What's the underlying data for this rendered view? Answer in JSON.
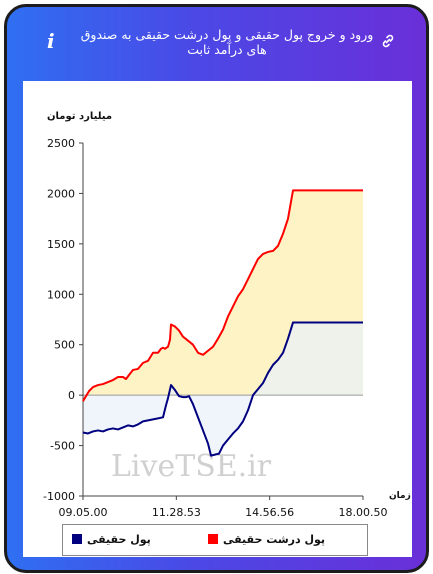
{
  "header": {
    "title": "ورود و خروج پول حقیقی و پول درشت حقیقی به صندوق های درآمد ثابت",
    "info_icon": "i"
  },
  "chart_data": {
    "type": "line",
    "title": "",
    "ylabel": "میلیارد تومان",
    "xlabel": "زمان",
    "ylim": [
      -1000,
      2500
    ],
    "yticks": [
      -1000,
      -500,
      0,
      500,
      1000,
      1500,
      2000,
      2500
    ],
    "ytick_labels": [
      "-1000",
      "-500",
      "0",
      "500",
      "1000",
      "1500",
      "2000",
      "2500"
    ],
    "x_tick_labels": [
      "09.05.00",
      "11.28.53",
      "14.56.56",
      "18.00.50"
    ],
    "grid": false,
    "legend_position": "bottom",
    "watermark": "LiveTSE.ir",
    "series": [
      {
        "name": "پول درشت حقیقی",
        "color": "#ff0000",
        "fill": "#fdf3c4",
        "points": [
          [
            0,
            -60
          ],
          [
            3,
            -10
          ],
          [
            6,
            40
          ],
          [
            10,
            80
          ],
          [
            15,
            100
          ],
          [
            20,
            110
          ],
          [
            25,
            130
          ],
          [
            30,
            150
          ],
          [
            35,
            180
          ],
          [
            40,
            180
          ],
          [
            43,
            160
          ],
          [
            46,
            200
          ],
          [
            50,
            250
          ],
          [
            55,
            260
          ],
          [
            60,
            320
          ],
          [
            65,
            340
          ],
          [
            70,
            420
          ],
          [
            75,
            420
          ],
          [
            78,
            460
          ],
          [
            80,
            470
          ],
          [
            82,
            460
          ],
          [
            85,
            480
          ],
          [
            87,
            550
          ],
          [
            88,
            700
          ],
          [
            92,
            680
          ],
          [
            96,
            640
          ],
          [
            100,
            580
          ],
          [
            105,
            540
          ],
          [
            110,
            500
          ],
          [
            115,
            420
          ],
          [
            120,
            400
          ],
          [
            125,
            440
          ],
          [
            130,
            480
          ],
          [
            135,
            560
          ],
          [
            140,
            650
          ],
          [
            145,
            780
          ],
          [
            150,
            880
          ],
          [
            155,
            980
          ],
          [
            160,
            1050
          ],
          [
            165,
            1150
          ],
          [
            170,
            1250
          ],
          [
            175,
            1350
          ],
          [
            180,
            1400
          ],
          [
            185,
            1420
          ],
          [
            190,
            1430
          ],
          [
            195,
            1480
          ],
          [
            200,
            1600
          ],
          [
            205,
            1750
          ],
          [
            210,
            2030
          ],
          [
            225,
            2030
          ],
          [
            240,
            2030
          ],
          [
            280,
            2030
          ]
        ]
      },
      {
        "name": "پول حقیقی",
        "color": "#000080",
        "fill": "#e9f1f8",
        "points": [
          [
            0,
            -370
          ],
          [
            5,
            -380
          ],
          [
            10,
            -360
          ],
          [
            15,
            -350
          ],
          [
            20,
            -360
          ],
          [
            25,
            -340
          ],
          [
            30,
            -330
          ],
          [
            35,
            -340
          ],
          [
            40,
            -320
          ],
          [
            45,
            -300
          ],
          [
            50,
            -310
          ],
          [
            55,
            -290
          ],
          [
            60,
            -260
          ],
          [
            65,
            -250
          ],
          [
            70,
            -240
          ],
          [
            75,
            -230
          ],
          [
            80,
            -220
          ],
          [
            83,
            -100
          ],
          [
            85,
            -30
          ],
          [
            88,
            100
          ],
          [
            92,
            50
          ],
          [
            96,
            -10
          ],
          [
            100,
            -20
          ],
          [
            103,
            -20
          ],
          [
            106,
            -10
          ],
          [
            110,
            -90
          ],
          [
            115,
            -220
          ],
          [
            120,
            -350
          ],
          [
            125,
            -480
          ],
          [
            128,
            -600
          ],
          [
            132,
            -590
          ],
          [
            136,
            -580
          ],
          [
            140,
            -500
          ],
          [
            145,
            -440
          ],
          [
            150,
            -380
          ],
          [
            155,
            -330
          ],
          [
            160,
            -260
          ],
          [
            165,
            -150
          ],
          [
            170,
            0
          ],
          [
            175,
            60
          ],
          [
            180,
            120
          ],
          [
            185,
            220
          ],
          [
            190,
            300
          ],
          [
            195,
            350
          ],
          [
            200,
            420
          ],
          [
            205,
            560
          ],
          [
            210,
            720
          ],
          [
            225,
            720
          ],
          [
            240,
            720
          ],
          [
            280,
            720
          ]
        ]
      }
    ],
    "xlim": [
      0,
      280
    ]
  },
  "legend": {
    "items": [
      {
        "label": "پول درشت حقیقی",
        "color": "#ff0000"
      },
      {
        "label": "پول حقیقی",
        "color": "#000080"
      }
    ]
  }
}
